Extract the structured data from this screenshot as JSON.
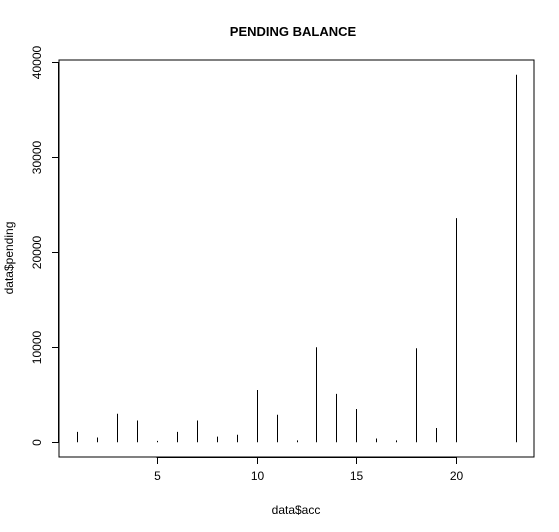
{
  "chart_data": {
    "type": "bar",
    "title": "PENDING BALANCE",
    "xlabel": "data$acc",
    "ylabel": "data$pending",
    "x": [
      1,
      2,
      3,
      4,
      5,
      6,
      7,
      8,
      9,
      10,
      11,
      12,
      13,
      14,
      15,
      16,
      17,
      18,
      19,
      20,
      23
    ],
    "values": [
      1100,
      500,
      3000,
      2300,
      150,
      1100,
      2300,
      600,
      800,
      5500,
      2900,
      200,
      10000,
      5100,
      3500,
      400,
      200,
      9900,
      1500,
      23600,
      38700
    ],
    "xlim": [
      0.12,
      23.88
    ],
    "ylim": [
      -1548,
      40248
    ],
    "xticks": [
      5,
      10,
      15,
      20
    ],
    "yticks": [
      0,
      10000,
      20000,
      30000,
      40000
    ],
    "grid": false,
    "legend": "none",
    "color": "#000000"
  }
}
